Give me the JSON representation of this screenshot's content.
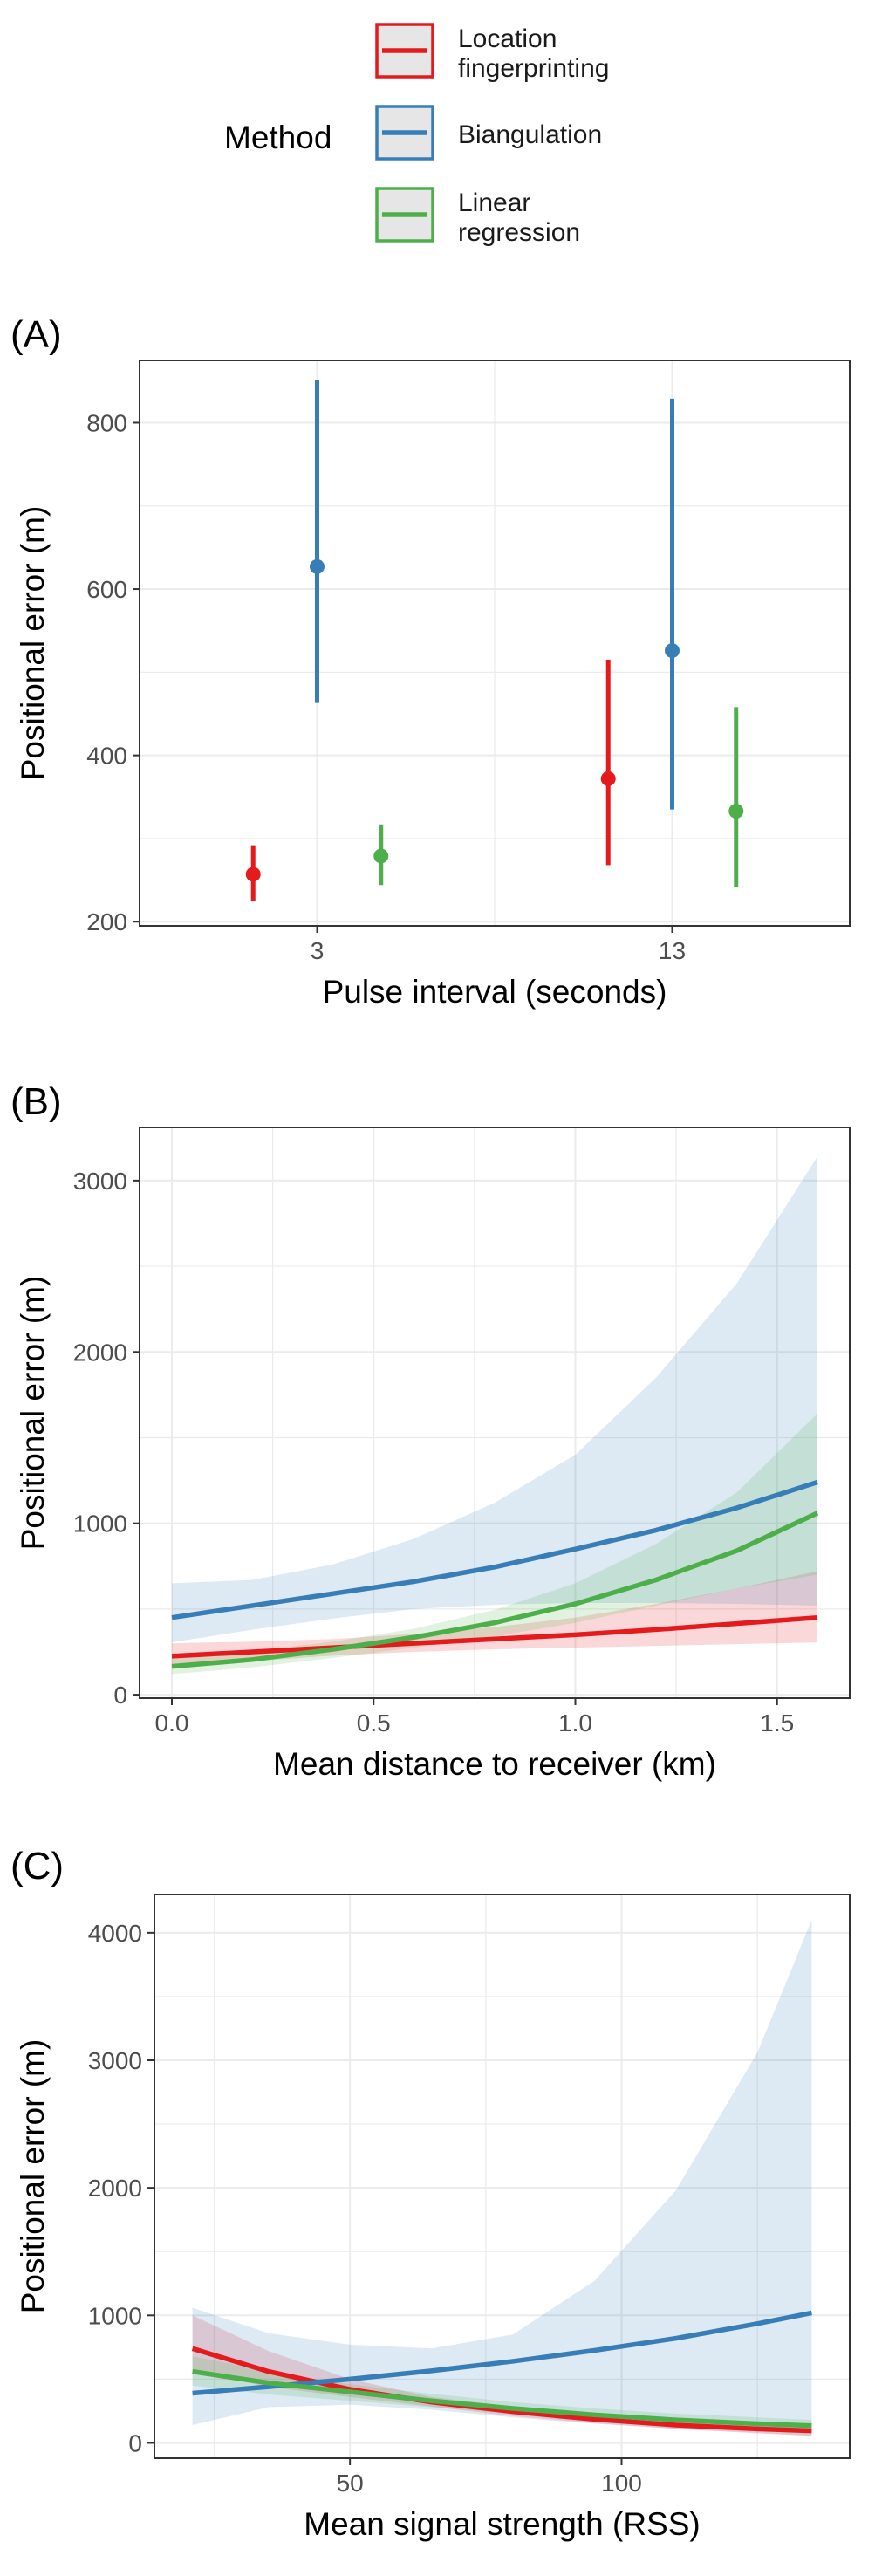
{
  "legend": {
    "title": "Method",
    "items": [
      {
        "label_lines": [
          "Location",
          "fingerprinting"
        ],
        "color": "#E41A1C"
      },
      {
        "label_lines": [
          "Biangulation"
        ],
        "color": "#377EB8"
      },
      {
        "label_lines": [
          "Linear",
          "regression"
        ],
        "color": "#4DAF4A"
      }
    ]
  },
  "colors": {
    "location_fingerprinting": "#E41A1C",
    "biangulation": "#377EB8",
    "linear_regression": "#4DAF4A",
    "grid": "#EBEBEB",
    "panel_border": "#333333"
  },
  "chart_data": [
    {
      "panel_label": "(A)",
      "type": "scatter",
      "subtype": "point-range",
      "xlabel": "Pulse interval (seconds)",
      "ylabel": "Positional error (m)",
      "categories": [
        "3",
        "13"
      ],
      "ylim": [
        195,
        875
      ],
      "yticks": [
        200,
        400,
        600,
        800
      ],
      "grid": true,
      "series": [
        {
          "name": "Location fingerprinting",
          "color": "#E41A1C",
          "values": [
            257,
            372
          ],
          "lower": [
            225,
            268
          ],
          "upper": [
            292,
            515
          ]
        },
        {
          "name": "Biangulation",
          "color": "#377EB8",
          "values": [
            627,
            526
          ],
          "lower": [
            463,
            335
          ],
          "upper": [
            851,
            829
          ]
        },
        {
          "name": "Linear regression",
          "color": "#4DAF4A",
          "values": [
            279,
            333
          ],
          "lower": [
            244,
            242
          ],
          "upper": [
            317,
            458
          ]
        }
      ]
    },
    {
      "panel_label": "(B)",
      "type": "line",
      "subtype": "line-with-confidence-band",
      "xlabel": "Mean distance to receiver (km)",
      "ylabel": "Positional error (m)",
      "xlim": [
        -0.08,
        1.68
      ],
      "ylim": [
        -20,
        3310
      ],
      "xticks": [
        0.0,
        0.5,
        1.0,
        1.5
      ],
      "xtick_labels": [
        "0.0",
        "0.5",
        "1.0",
        "1.5"
      ],
      "yticks": [
        0,
        1000,
        2000,
        3000
      ],
      "grid": true,
      "x": [
        0.0,
        0.2,
        0.4,
        0.6,
        0.8,
        1.0,
        1.2,
        1.4,
        1.6
      ],
      "series": [
        {
          "name": "Location fingerprinting",
          "color": "#E41A1C",
          "values": [
            225,
            250,
            275,
            300,
            325,
            350,
            380,
            415,
            450
          ],
          "lower": [
            160,
            195,
            228,
            250,
            265,
            275,
            285,
            295,
            305
          ],
          "upper": [
            300,
            310,
            325,
            355,
            395,
            450,
            530,
            620,
            720
          ]
        },
        {
          "name": "Biangulation",
          "color": "#377EB8",
          "values": [
            450,
            520,
            590,
            660,
            745,
            850,
            960,
            1090,
            1240
          ],
          "lower": [
            305,
            380,
            445,
            500,
            525,
            535,
            535,
            530,
            520
          ],
          "upper": [
            650,
            670,
            760,
            910,
            1120,
            1400,
            1850,
            2400,
            3140
          ]
        },
        {
          "name": "Linear regression",
          "color": "#4DAF4A",
          "values": [
            165,
            205,
            265,
            335,
            420,
            530,
            670,
            840,
            1060
          ],
          "lower": [
            120,
            160,
            215,
            275,
            340,
            420,
            520,
            620,
            700
          ],
          "upper": [
            220,
            255,
            310,
            385,
            495,
            650,
            880,
            1180,
            1640
          ]
        }
      ]
    },
    {
      "panel_label": "(C)",
      "type": "line",
      "subtype": "line-with-confidence-band",
      "xlabel": "Mean signal strength (RSS)",
      "ylabel": "Positional error (m)",
      "xlim": [
        14,
        142
      ],
      "ylim": [
        -120,
        4300
      ],
      "xticks": [
        50,
        100
      ],
      "xtick_labels": [
        "50",
        "100"
      ],
      "yticks": [
        0,
        1000,
        2000,
        3000,
        4000
      ],
      "grid": true,
      "x": [
        21,
        35,
        50,
        65,
        80,
        95,
        110,
        125,
        135
      ],
      "series": [
        {
          "name": "Location fingerprinting",
          "color": "#E41A1C",
          "values": [
            740,
            560,
            420,
            320,
            245,
            185,
            140,
            110,
            95
          ],
          "lower": [
            560,
            440,
            360,
            285,
            210,
            155,
            110,
            75,
            55
          ],
          "upper": [
            1000,
            720,
            500,
            360,
            285,
            225,
            180,
            160,
            150
          ]
        },
        {
          "name": "Biangulation",
          "color": "#377EB8",
          "values": [
            390,
            440,
            500,
            565,
            640,
            725,
            820,
            935,
            1020
          ],
          "lower": [
            140,
            280,
            300,
            260,
            200,
            150,
            110,
            80,
            55
          ],
          "upper": [
            1060,
            860,
            770,
            740,
            850,
            1270,
            1980,
            3060,
            4100
          ]
        },
        {
          "name": "Linear regression",
          "color": "#4DAF4A",
          "values": [
            560,
            470,
            400,
            330,
            270,
            220,
            180,
            150,
            135
          ],
          "lower": [
            450,
            380,
            330,
            280,
            230,
            185,
            150,
            120,
            100
          ],
          "upper": [
            680,
            560,
            460,
            385,
            320,
            270,
            230,
            200,
            180
          ]
        }
      ]
    }
  ]
}
